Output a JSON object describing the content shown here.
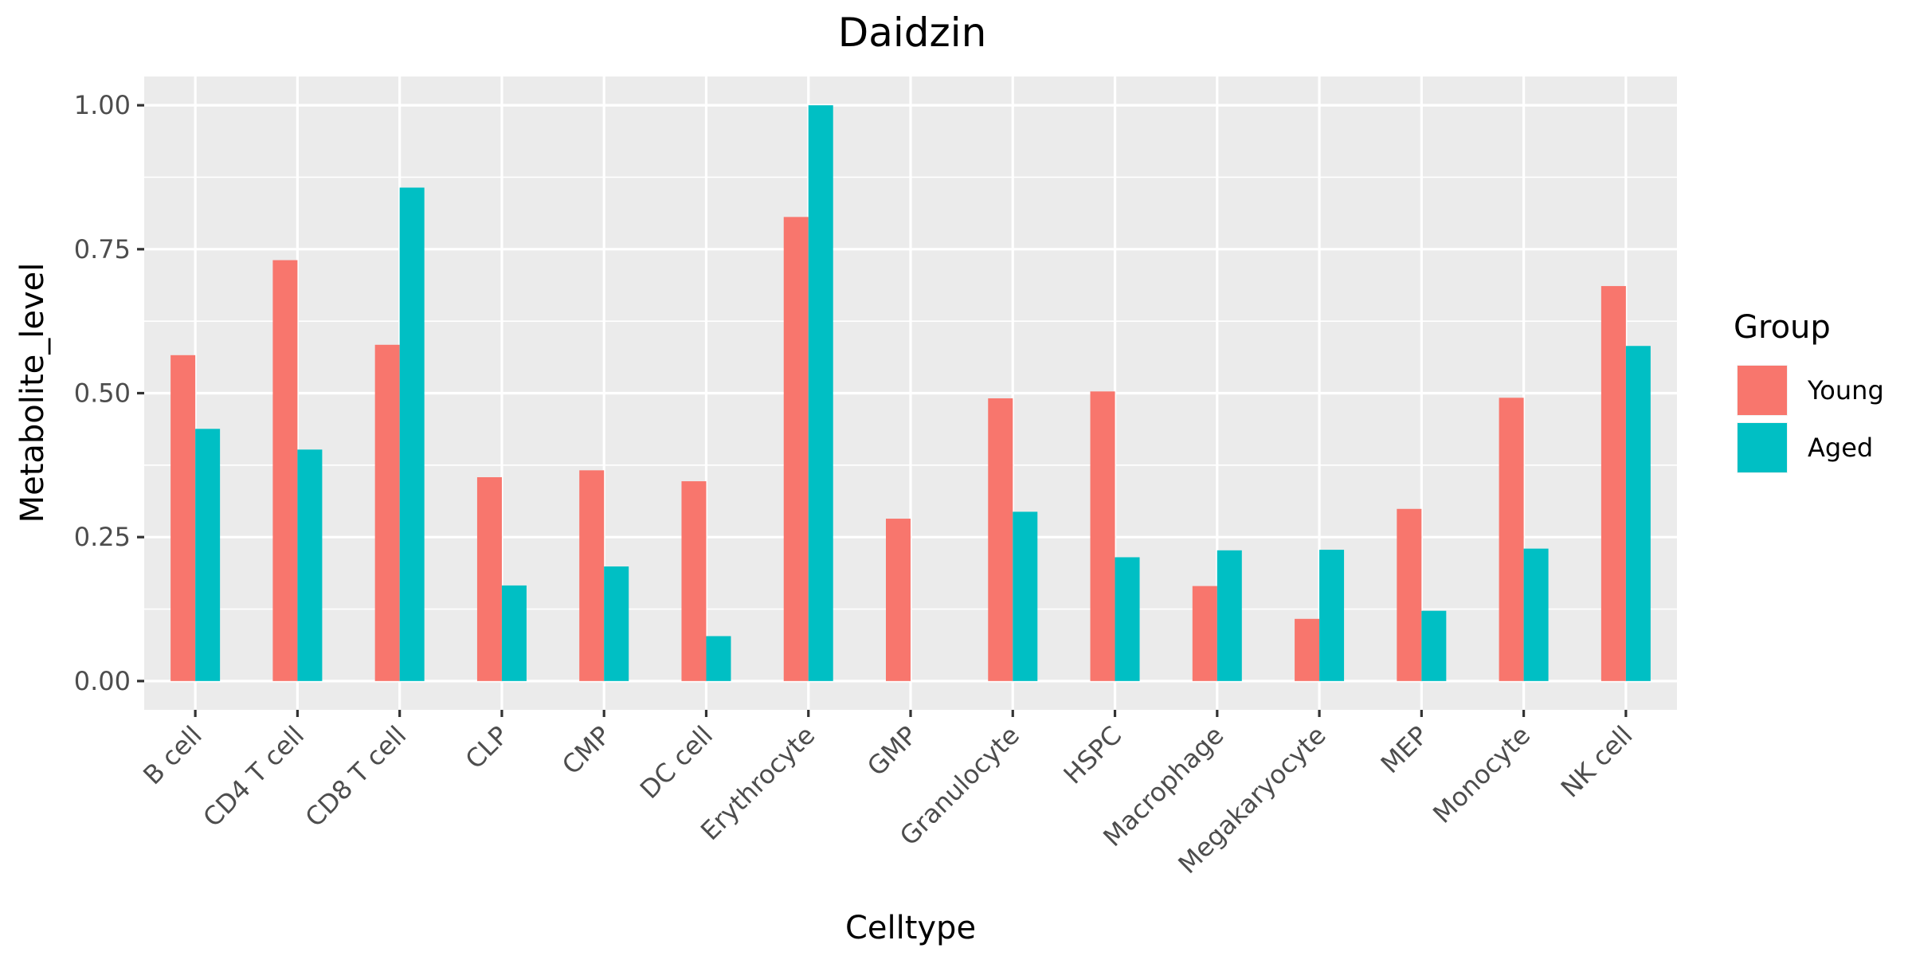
{
  "chart_data": {
    "type": "bar",
    "title": "Daidzin",
    "xlabel": "Celltype",
    "ylabel": "Metabolite_level",
    "ylim": [
      -0.05,
      1.05
    ],
    "yticks": [
      "0.00",
      "0.25",
      "0.50",
      "0.75",
      "1.00"
    ],
    "grid": true,
    "legend": {
      "title": "Group",
      "position": "right"
    },
    "categories": [
      "B cell",
      "CD4 T cell",
      "CD8 T cell",
      "CLP",
      "CMP",
      "DC cell",
      "Erythrocyte",
      "GMP",
      "Granulocyte",
      "HSPC",
      "Macrophage",
      "Megakaryocyte",
      "MEP",
      "Monocyte",
      "NK cell"
    ],
    "series": [
      {
        "name": "Young",
        "color": "#F8766D",
        "values": [
          0.566,
          0.731,
          0.584,
          0.354,
          0.366,
          0.347,
          0.806,
          0.282,
          0.491,
          0.503,
          0.165,
          0.108,
          0.299,
          0.492,
          0.686
        ]
      },
      {
        "name": "Aged",
        "color": "#00BFC4",
        "values": [
          0.438,
          0.402,
          0.857,
          0.166,
          0.199,
          0.078,
          1.0,
          0.0,
          0.294,
          0.215,
          0.227,
          0.228,
          0.122,
          0.23,
          0.582
        ]
      }
    ]
  }
}
